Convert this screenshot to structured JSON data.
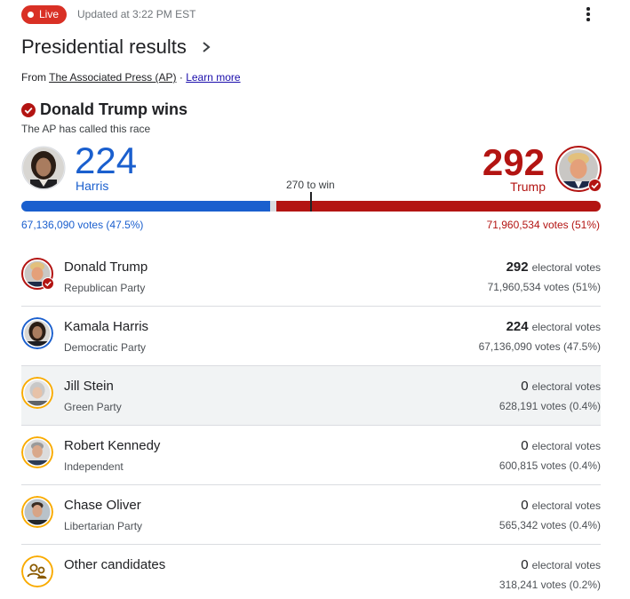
{
  "header": {
    "live_label": "Live",
    "updated_text": "Updated at 3:22 PM EST",
    "more_icon": "more-vert-icon"
  },
  "title": "Presidential results",
  "source": {
    "prefix": "From ",
    "link_text": "The Associated Press (AP)",
    "separator": " · ",
    "learn_more": "Learn more"
  },
  "winner": {
    "text": "Donald Trump wins",
    "subtext": "The AP has called this race"
  },
  "tally": {
    "dem_ev": "224",
    "dem_name": "Harris",
    "rep_ev": "292",
    "rep_name": "Trump",
    "to_win": "270 to win",
    "dem_share": 0.4296,
    "rep_share": 0.5604,
    "dem_votes": "67,136,090 votes (47.5%)",
    "rep_votes": "71,960,534 votes (51%)"
  },
  "colors": {
    "democrat": "#1a5fce",
    "republican": "#b31412",
    "other_ring": "#f9ab00"
  },
  "candidates": [
    {
      "name": "Donald Trump",
      "party": "Republican Party",
      "ev": "292",
      "ev_label": "electoral votes",
      "votes": "71,960,534 votes (51%)"
    },
    {
      "name": "Kamala Harris",
      "party": "Democratic Party",
      "ev": "224",
      "ev_label": "electoral votes",
      "votes": "67,136,090 votes (47.5%)"
    },
    {
      "name": "Jill Stein",
      "party": "Green Party",
      "ev": "0",
      "ev_label": "electoral votes",
      "votes": "628,191 votes (0.4%)"
    },
    {
      "name": "Robert Kennedy",
      "party": "Independent",
      "ev": "0",
      "ev_label": "electoral votes",
      "votes": "600,815 votes (0.4%)"
    },
    {
      "name": "Chase Oliver",
      "party": "Libertarian Party",
      "ev": "0",
      "ev_label": "electoral votes",
      "votes": "565,342 votes (0.4%)"
    },
    {
      "name": "Other candidates",
      "party": "",
      "ev": "0",
      "ev_label": "electoral votes",
      "votes": "318,241 votes (0.2%)"
    }
  ]
}
